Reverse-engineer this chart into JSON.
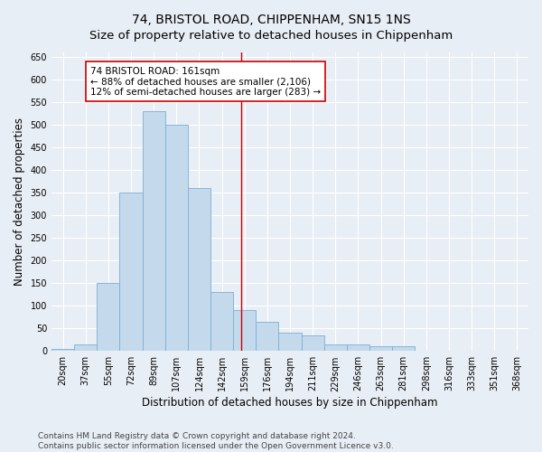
{
  "title": "74, BRISTOL ROAD, CHIPPENHAM, SN15 1NS",
  "subtitle": "Size of property relative to detached houses in Chippenham",
  "xlabel": "Distribution of detached houses by size in Chippenham",
  "ylabel": "Number of detached properties",
  "categories": [
    "20sqm",
    "37sqm",
    "55sqm",
    "72sqm",
    "89sqm",
    "107sqm",
    "124sqm",
    "142sqm",
    "159sqm",
    "176sqm",
    "194sqm",
    "211sqm",
    "229sqm",
    "246sqm",
    "263sqm",
    "281sqm",
    "298sqm",
    "316sqm",
    "333sqm",
    "351sqm",
    "368sqm"
  ],
  "values": [
    5,
    15,
    150,
    350,
    530,
    500,
    360,
    130,
    90,
    65,
    40,
    35,
    15,
    15,
    10,
    10,
    0,
    0,
    0,
    0,
    0
  ],
  "bar_color": "#c5d9ec",
  "bar_edge_color": "#7aafd4",
  "vline_x": 7.85,
  "vline_color": "#cc0000",
  "annotation_text": "74 BRISTOL ROAD: 161sqm\n← 88% of detached houses are smaller (2,106)\n12% of semi-detached houses are larger (283) →",
  "annotation_box_facecolor": "#ffffff",
  "annotation_box_edgecolor": "#cc0000",
  "ylim": [
    0,
    660
  ],
  "yticks": [
    0,
    50,
    100,
    150,
    200,
    250,
    300,
    350,
    400,
    450,
    500,
    550,
    600,
    650
  ],
  "background_color": "#e8eef5",
  "grid_color": "#ffffff",
  "title_fontsize": 10,
  "axis_label_fontsize": 8.5,
  "tick_fontsize": 7,
  "annotation_fontsize": 7.5,
  "footer_fontsize": 6.5,
  "footer_line1": "Contains HM Land Registry data © Crown copyright and database right 2024.",
  "footer_line2": "Contains public sector information licensed under the Open Government Licence v3.0."
}
